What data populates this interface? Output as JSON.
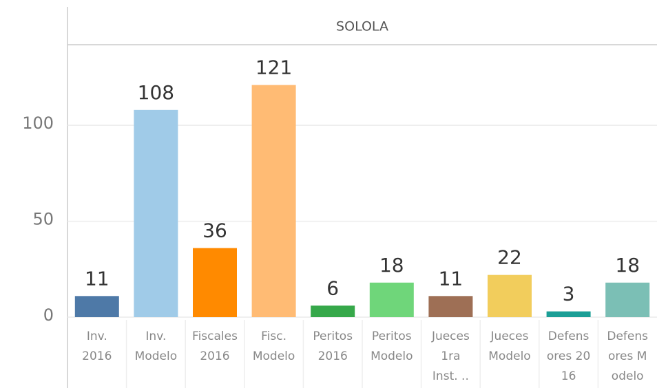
{
  "chart_data": {
    "type": "bar",
    "subtitle": "SOLOLA",
    "categories": [
      "Inv.\n2016",
      "Inv.\nModelo",
      "Fiscales\n2016",
      "Fisc.\nModelo",
      "Peritos\n2016",
      "Peritos\nModelo",
      "Jueces\n1ra\nInst. ..",
      "Jueces\nModelo",
      "Defens\nores 20\n16",
      "Defens\nores M\nodelo"
    ],
    "values": [
      11,
      108,
      36,
      121,
      6,
      18,
      11,
      22,
      3,
      18
    ],
    "colors": [
      "#4e79a7",
      "#a0cbe8",
      "#ff8a00",
      "#ffbb74",
      "#36a84a",
      "#6fd67a",
      "#9e6f55",
      "#f2cd5c",
      "#1b9e96",
      "#7bbfb5"
    ],
    "ylim": [
      0,
      142
    ],
    "yticks": [
      0,
      50,
      100
    ],
    "grid": true
  }
}
